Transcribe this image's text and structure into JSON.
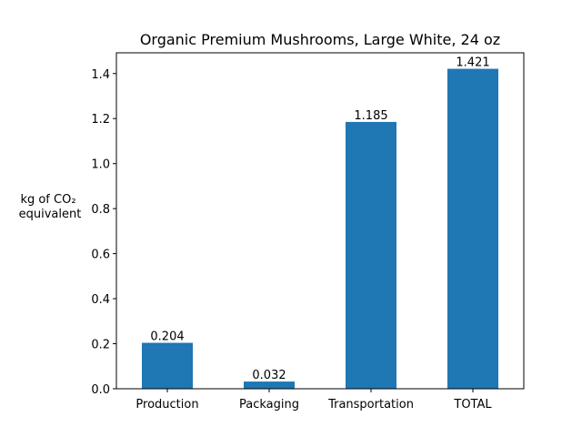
{
  "chart_data": {
    "type": "bar",
    "title": "Organic Premium Mushrooms, Large White, 24 oz",
    "xlabel": "",
    "ylabel_lines": [
      "kg of CO₂",
      "equivalent"
    ],
    "categories": [
      "Production",
      "Packaging",
      "Transportation",
      "TOTAL"
    ],
    "values": [
      0.204,
      0.032,
      1.185,
      1.421
    ],
    "data_labels": [
      "0.204",
      "0.032",
      "1.185",
      "1.421"
    ],
    "ylim": [
      0,
      1.492
    ],
    "yticks": [
      0.0,
      0.2,
      0.4,
      0.6,
      0.8,
      1.0,
      1.2,
      1.4
    ],
    "ytick_labels": [
      "0.0",
      "0.2",
      "0.4",
      "0.6",
      "0.8",
      "1.0",
      "1.2",
      "1.4"
    ],
    "bar_color": "#1f77b4",
    "grid": false,
    "legend": "none"
  }
}
